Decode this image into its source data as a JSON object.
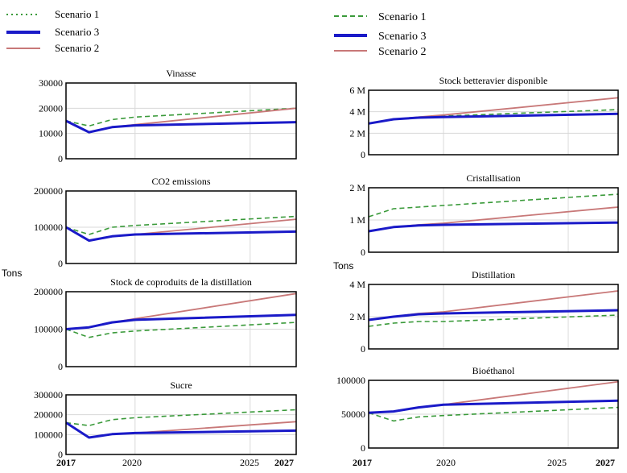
{
  "legends": {
    "left": [
      {
        "name": "Scenario 1",
        "color": "#3a9a3a",
        "style": "dotted"
      },
      {
        "name": "Scenario 3",
        "color": "#1a1ac8",
        "style": "thick"
      },
      {
        "name": "Scenario 2",
        "color": "#c87878",
        "style": "solid"
      }
    ],
    "right": [
      {
        "name": "Scenario 1",
        "color": "#3a9a3a",
        "style": "dashed"
      },
      {
        "name": "Scenario 3",
        "color": "#1a1ac8",
        "style": "thick"
      },
      {
        "name": "Scenario 2",
        "color": "#c87878",
        "style": "solid"
      }
    ]
  },
  "units": {
    "left": "Tons",
    "right": "Tons"
  },
  "x_tick_labels": [
    "2017",
    "2020",
    "2025",
    "2027"
  ],
  "chart_data": [
    {
      "type": "line",
      "title": "Vinasse",
      "x": [
        2017,
        2018,
        2019,
        2020,
        2027
      ],
      "ylim": [
        0,
        30000
      ],
      "y_ticks": [
        {
          "v": 0,
          "label": "0"
        },
        {
          "v": 10000,
          "label": "10000"
        },
        {
          "v": 20000,
          "label": "20000"
        },
        {
          "v": 30000,
          "label": "30000"
        }
      ],
      "series": [
        {
          "name": "Scenario 1",
          "values": [
            15000,
            13000,
            15500,
            16500,
            20000
          ]
        },
        {
          "name": "Scenario 3",
          "values": [
            15000,
            10500,
            12500,
            13200,
            14500
          ]
        },
        {
          "name": "Scenario 2",
          "values": [
            15000,
            10500,
            12500,
            13500,
            20000
          ]
        }
      ]
    },
    {
      "type": "line",
      "title": "CO2 emissions",
      "x": [
        2017,
        2018,
        2019,
        2020,
        2027
      ],
      "ylim": [
        0,
        200000
      ],
      "y_ticks": [
        {
          "v": 0,
          "label": "0"
        },
        {
          "v": 100000,
          "label": "100000"
        },
        {
          "v": 200000,
          "label": "200000"
        }
      ],
      "series": [
        {
          "name": "Scenario 1",
          "values": [
            100000,
            80000,
            100000,
            105000,
            130000
          ]
        },
        {
          "name": "Scenario 3",
          "values": [
            100000,
            63000,
            75000,
            80000,
            88000
          ]
        },
        {
          "name": "Scenario 2",
          "values": [
            100000,
            63000,
            75000,
            80000,
            122000
          ]
        }
      ]
    },
    {
      "type": "line",
      "title": "Stock de coproduits de la distillation",
      "x": [
        2017,
        2018,
        2019,
        2020,
        2027
      ],
      "ylim": [
        0,
        200000
      ],
      "y_ticks": [
        {
          "v": 0,
          "label": "0"
        },
        {
          "v": 100000,
          "label": "100000"
        },
        {
          "v": 200000,
          "label": "200000"
        }
      ],
      "series": [
        {
          "name": "Scenario 1",
          "values": [
            100000,
            78000,
            90000,
            95000,
            118000
          ]
        },
        {
          "name": "Scenario 3",
          "values": [
            100000,
            105000,
            118000,
            125000,
            138000
          ]
        },
        {
          "name": "Scenario 2",
          "values": [
            100000,
            105000,
            118000,
            128000,
            195000
          ]
        }
      ]
    },
    {
      "type": "line",
      "title": "Sucre",
      "x": [
        2017,
        2018,
        2019,
        2020,
        2027
      ],
      "ylim": [
        0,
        300000
      ],
      "y_ticks": [
        {
          "v": 0,
          "label": "0"
        },
        {
          "v": 100000,
          "label": "100000"
        },
        {
          "v": 200000,
          "label": "200000"
        },
        {
          "v": 300000,
          "label": "300000"
        }
      ],
      "series": [
        {
          "name": "Scenario 1",
          "values": [
            160000,
            145000,
            175000,
            185000,
            225000
          ]
        },
        {
          "name": "Scenario 3",
          "values": [
            160000,
            85000,
            102000,
            108000,
            120000
          ]
        },
        {
          "name": "Scenario 2",
          "values": [
            160000,
            85000,
            102000,
            108000,
            165000
          ]
        }
      ]
    },
    {
      "type": "line",
      "title": "Stock betteravier disponible",
      "x": [
        2017,
        2018,
        2019,
        2020,
        2027
      ],
      "ylim": [
        0,
        6000000
      ],
      "y_ticks": [
        {
          "v": 0,
          "label": "0"
        },
        {
          "v": 2000000,
          "label": "2 M"
        },
        {
          "v": 4000000,
          "label": "4 M"
        },
        {
          "v": 6000000,
          "label": "6 M"
        }
      ],
      "series": [
        {
          "name": "Scenario 1",
          "values": [
            2900000,
            3300000,
            3500000,
            3600000,
            4200000
          ]
        },
        {
          "name": "Scenario 3",
          "values": [
            2900000,
            3300000,
            3450000,
            3500000,
            3800000
          ]
        },
        {
          "name": "Scenario 2",
          "values": [
            2900000,
            3300000,
            3500000,
            3700000,
            5300000
          ]
        }
      ]
    },
    {
      "type": "line",
      "title": "Cristallisation",
      "x": [
        2017,
        2018,
        2019,
        2020,
        2027
      ],
      "ylim": [
        0,
        2000000
      ],
      "y_ticks": [
        {
          "v": 0,
          "label": "0"
        },
        {
          "v": 1000000,
          "label": "1 M"
        },
        {
          "v": 2000000,
          "label": "2 M"
        }
      ],
      "series": [
        {
          "name": "Scenario 1",
          "values": [
            1100000,
            1350000,
            1400000,
            1450000,
            1800000
          ]
        },
        {
          "name": "Scenario 3",
          "values": [
            650000,
            780000,
            830000,
            850000,
            920000
          ]
        },
        {
          "name": "Scenario 2",
          "values": [
            650000,
            780000,
            850000,
            900000,
            1400000
          ]
        }
      ]
    },
    {
      "type": "line",
      "title": "Distillation",
      "x": [
        2017,
        2018,
        2019,
        2020,
        2027
      ],
      "ylim": [
        0,
        4000000
      ],
      "y_ticks": [
        {
          "v": 0,
          "label": "0"
        },
        {
          "v": 2000000,
          "label": "2 M"
        },
        {
          "v": 4000000,
          "label": "4 M"
        }
      ],
      "series": [
        {
          "name": "Scenario 1",
          "values": [
            1400000,
            1600000,
            1700000,
            1700000,
            2100000
          ]
        },
        {
          "name": "Scenario 3",
          "values": [
            1800000,
            2000000,
            2150000,
            2200000,
            2400000
          ]
        },
        {
          "name": "Scenario 2",
          "values": [
            1800000,
            2000000,
            2200000,
            2300000,
            3600000
          ]
        }
      ]
    },
    {
      "type": "line",
      "title": "Bioéthanol",
      "x": [
        2017,
        2018,
        2019,
        2020,
        2027
      ],
      "ylim": [
        0,
        100000
      ],
      "y_ticks": [
        {
          "v": 0,
          "label": "0"
        },
        {
          "v": 50000,
          "label": "50000"
        },
        {
          "v": 100000,
          "label": "100000"
        }
      ],
      "series": [
        {
          "name": "Scenario 1",
          "values": [
            52000,
            40000,
            46000,
            48000,
            60000
          ]
        },
        {
          "name": "Scenario 3",
          "values": [
            52000,
            54000,
            60000,
            64000,
            70000
          ]
        },
        {
          "name": "Scenario 2",
          "values": [
            52000,
            54000,
            60000,
            64000,
            98000
          ]
        }
      ]
    }
  ]
}
